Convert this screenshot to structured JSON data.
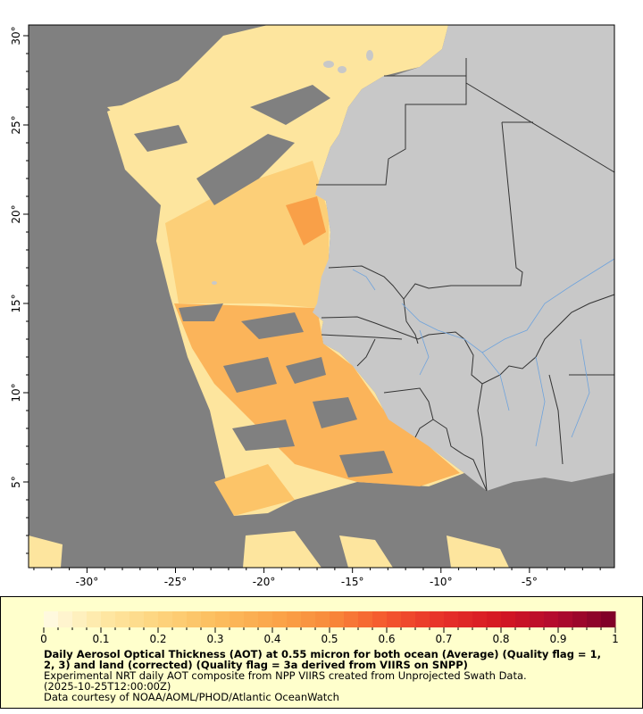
{
  "map": {
    "lon_ticks": [
      "-30°",
      "-25°",
      "-20°",
      "-15°",
      "-10°",
      "-5°"
    ],
    "lon_values": [
      -30,
      -25,
      -20,
      -15,
      -10,
      -5
    ],
    "lat_ticks": [
      "30°",
      "25°",
      "20°",
      "15°",
      "10°",
      "5°"
    ],
    "lat_values": [
      30,
      25,
      20,
      15,
      10,
      5
    ],
    "extent": {
      "lon": [
        -33.3,
        -0.2
      ],
      "lat": [
        0.2,
        30.6
      ]
    },
    "colors": {
      "no_data": "#808080",
      "land": "#c8c8c8",
      "borders": "#333333",
      "rivers": "#6fa3dc"
    }
  },
  "legend": {
    "tick_labels": [
      "0",
      "0.1",
      "0.2",
      "0.3",
      "0.4",
      "0.5",
      "0.6",
      "0.7",
      "0.8",
      "0.9",
      "1"
    ],
    "range": [
      0,
      1
    ],
    "colormap": [
      "#fffbe6",
      "#fee9a6",
      "#fdd47e",
      "#fcbe5e",
      "#fba64a",
      "#f88a3b",
      "#f4562d",
      "#e6302a",
      "#d41722",
      "#b00a2e",
      "#7a0027"
    ],
    "title": "Daily Aerosol Optical Thickness (AOT) at 0.55 micron for both ocean (Average) (Quality flag = 1, 2, 3) and land (corrected) (Quality flag = 3a derived from VIIRS on SNPP)",
    "line1": "Experimental NRT daily AOT composite from NPP VIIRS created from Unprojected Swath Data.",
    "line2": "(2025-10-25T12:00:00Z)",
    "line3": "Data courtesy of NOAA/AOML/PHOD/Atlantic OceanWatch"
  }
}
